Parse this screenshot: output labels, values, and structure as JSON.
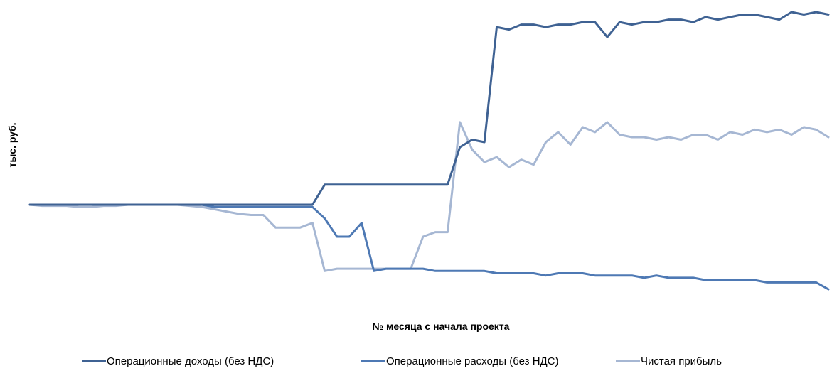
{
  "chart_data": {
    "type": "line",
    "title": "",
    "xlabel": "№ месяца с начала проекта",
    "ylabel": "тыс. руб.",
    "grid": false,
    "legend_position": "bottom",
    "colors": {
      "income": "#3f6293",
      "expenses": "#4e79b4",
      "profit": "#a6b7d3"
    },
    "x": [
      1,
      2,
      3,
      4,
      5,
      6,
      7,
      8,
      9,
      10,
      11,
      12,
      13,
      14,
      15,
      16,
      17,
      18,
      19,
      20,
      21,
      22,
      23,
      24,
      25,
      26,
      27,
      28,
      29,
      30,
      31,
      32,
      33,
      34,
      35,
      36,
      37,
      38,
      39,
      40,
      41,
      42,
      43,
      44,
      45,
      46,
      47,
      48,
      49,
      50,
      51,
      52,
      53,
      54,
      55,
      56,
      57,
      58,
      59,
      60,
      61,
      62,
      63,
      64,
      65,
      66
    ],
    "series": [
      {
        "key": "income",
        "name": "Операционные доходы (без НДС)",
        "values": [
          0,
          0,
          0,
          0,
          0,
          0,
          0,
          0,
          0,
          0,
          0,
          0,
          0,
          0,
          0,
          0,
          0,
          0,
          0,
          0,
          0,
          0,
          0,
          0,
          8,
          8,
          8,
          8,
          8,
          8,
          8,
          8,
          8,
          8,
          8,
          23,
          26,
          25,
          71,
          70,
          72,
          72,
          71,
          72,
          72,
          73,
          73,
          67,
          73,
          72,
          73,
          73,
          74,
          74,
          73,
          75,
          74,
          75,
          76,
          76,
          75,
          74,
          77,
          76,
          77,
          76
        ]
      },
      {
        "key": "expenses",
        "name": "Операционные расходы (без НДС)",
        "values": [
          0,
          0,
          0,
          0,
          0,
          0,
          0,
          0,
          0,
          0,
          0,
          0,
          0,
          0,
          0,
          -1,
          -1,
          -1,
          -1,
          -1,
          -1,
          -1,
          -1,
          -1,
          -6,
          -14,
          -14,
          -8,
          -29,
          -28,
          -28,
          -28,
          -28,
          -29,
          -29,
          -29,
          -29,
          -29,
          -30,
          -30,
          -30,
          -30,
          -31,
          -30,
          -30,
          -30,
          -31,
          -31,
          -31,
          -31,
          -32,
          -31,
          -32,
          -32,
          -32,
          -33,
          -33,
          -33,
          -33,
          -33,
          -34,
          -34,
          -34,
          -34,
          -34,
          -37
        ]
      },
      {
        "key": "profit",
        "name": "Чистая прибыль",
        "values": [
          0,
          -0.5,
          -0.5,
          -0.5,
          -1,
          -1,
          -0.5,
          -0.5,
          0,
          0,
          0,
          0,
          0,
          -0.5,
          -1,
          -2,
          -3,
          -4,
          -4.5,
          -4.5,
          -10,
          -10,
          -10,
          -8,
          -29,
          -28,
          -28,
          -28,
          -28,
          -28,
          -28,
          -28,
          -14,
          -12,
          -12,
          33,
          22,
          17,
          19,
          15,
          18,
          16,
          25,
          29,
          24,
          31,
          29,
          33,
          28,
          27,
          27,
          26,
          27,
          26,
          28,
          28,
          26,
          29,
          28,
          30,
          29,
          30,
          28,
          31,
          30,
          27
        ]
      }
    ],
    "ylim": [
      -42,
      82
    ],
    "xlim": [
      1,
      66
    ]
  }
}
